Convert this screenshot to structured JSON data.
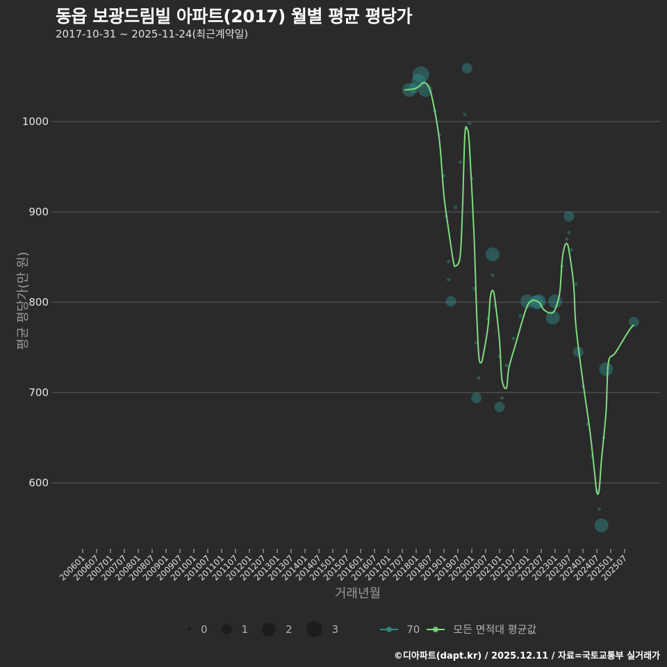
{
  "header": {
    "title": "동읍 보광드림빌 아파트(2017) 월별 평균 평당가",
    "subtitle": "2017-10-31 ~ 2025-11-24(최근계약일)"
  },
  "axes": {
    "y_label": "평균 평당가(만 원)",
    "x_label": "거래년월",
    "y_ticks": [
      "600",
      "700",
      "800",
      "900",
      "1000"
    ],
    "x_ticks": [
      "200601",
      "200607",
      "200701",
      "200707",
      "200801",
      "200807",
      "200901",
      "200907",
      "201001",
      "201007",
      "201101",
      "201107",
      "201201",
      "201207",
      "201301",
      "201307",
      "201401",
      "201407",
      "201501",
      "201507",
      "201601",
      "201607",
      "201701",
      "201707",
      "201801",
      "201807",
      "201901",
      "201907",
      "202001",
      "202007",
      "202101",
      "202107",
      "202201",
      "202207",
      "202301",
      "202307",
      "202401",
      "202407",
      "202501",
      "202507"
    ]
  },
  "legend": {
    "size_items": [
      {
        "label": "0",
        "size": 5
      },
      {
        "label": "1",
        "size": 15
      },
      {
        "label": "2",
        "size": 20
      },
      {
        "label": "3",
        "size": 23
      }
    ],
    "series": [
      {
        "label": "70",
        "color": "#2f8f8a"
      },
      {
        "label": "모든 면적대 평균값",
        "color": "#7fe07f"
      }
    ]
  },
  "footer": {
    "credit": "©디아파트(dapt.kr) / 2025.12.11 / 자료=국토교통부 실거래가"
  },
  "colors": {
    "background": "#2a2a2b",
    "grid": "#555555",
    "bubble": "#2f8f8a",
    "line": "#7fe07f"
  },
  "chart_data": {
    "type": "scatter+line",
    "title": "동읍 보광드림빌 아파트(2017) 월별 평균 평당가",
    "subtitle": "2017-10-31 ~ 2025-11-24(최근계약일)",
    "xlabel": "거래년월",
    "ylabel": "평균 평당가(만 원)",
    "ylim": [
      530,
      1080
    ],
    "yticks": [
      600,
      700,
      800,
      900,
      1000
    ],
    "grid": true,
    "legend_position": "bottom",
    "series": [
      {
        "name": "70",
        "kind": "bubble",
        "points": [
          {
            "x": "2017-10",
            "y": 1035,
            "size": 2
          },
          {
            "x": "2017-12",
            "y": 1037,
            "size": 1
          },
          {
            "x": "2018-02",
            "y": 1045,
            "size": 2
          },
          {
            "x": "2018-03",
            "y": 1052,
            "size": 3
          },
          {
            "x": "2018-05",
            "y": 1035,
            "size": 2
          },
          {
            "x": "2018-09",
            "y": 1012,
            "size": 0
          },
          {
            "x": "2018-11",
            "y": 985,
            "size": 0
          },
          {
            "x": "2019-01",
            "y": 940,
            "size": 0
          },
          {
            "x": "2019-02",
            "y": 895,
            "size": 0
          },
          {
            "x": "2019-03",
            "y": 845,
            "size": 0
          },
          {
            "x": "2019-03",
            "y": 825,
            "size": 0
          },
          {
            "x": "2019-04",
            "y": 801,
            "size": 1
          },
          {
            "x": "2019-06",
            "y": 905,
            "size": 0
          },
          {
            "x": "2019-08",
            "y": 955,
            "size": 0
          },
          {
            "x": "2019-10",
            "y": 1008,
            "size": 0
          },
          {
            "x": "2019-11",
            "y": 1059,
            "size": 1
          },
          {
            "x": "2019-12",
            "y": 998,
            "size": 0
          },
          {
            "x": "2020-01",
            "y": 937,
            "size": 0
          },
          {
            "x": "2020-02",
            "y": 815,
            "size": 0
          },
          {
            "x": "2020-03",
            "y": 694,
            "size": 1
          },
          {
            "x": "2020-04",
            "y": 716,
            "size": 0
          },
          {
            "x": "2020-03",
            "y": 755,
            "size": 0
          },
          {
            "x": "2020-08",
            "y": 782,
            "size": 0
          },
          {
            "x": "2020-10",
            "y": 853,
            "size": 2
          },
          {
            "x": "2020-10",
            "y": 830,
            "size": 0
          },
          {
            "x": "2020-11",
            "y": 796,
            "size": 0
          },
          {
            "x": "2021-01",
            "y": 684,
            "size": 1
          },
          {
            "x": "2021-01",
            "y": 740,
            "size": 0
          },
          {
            "x": "2021-02",
            "y": 694,
            "size": 0
          },
          {
            "x": "2021-04",
            "y": 730,
            "size": 0
          },
          {
            "x": "2021-07",
            "y": 760,
            "size": 0
          },
          {
            "x": "2021-10",
            "y": 785,
            "size": 0
          },
          {
            "x": "2022-01",
            "y": 801,
            "size": 2
          },
          {
            "x": "2022-05",
            "y": 800,
            "size": 2
          },
          {
            "x": "2022-06",
            "y": 801,
            "size": 2
          },
          {
            "x": "2022-12",
            "y": 783,
            "size": 2
          },
          {
            "x": "2023-01",
            "y": 801,
            "size": 2
          },
          {
            "x": "2023-04",
            "y": 840,
            "size": 0
          },
          {
            "x": "2023-06",
            "y": 870,
            "size": 0
          },
          {
            "x": "2023-07",
            "y": 895,
            "size": 1
          },
          {
            "x": "2023-07",
            "y": 877,
            "size": 0
          },
          {
            "x": "2023-08",
            "y": 858,
            "size": 0
          },
          {
            "x": "2023-10",
            "y": 820,
            "size": 0
          },
          {
            "x": "2023-11",
            "y": 745,
            "size": 1
          },
          {
            "x": "2024-01",
            "y": 707,
            "size": 0
          },
          {
            "x": "2024-03",
            "y": 665,
            "size": 0
          },
          {
            "x": "2024-05",
            "y": 630,
            "size": 0
          },
          {
            "x": "2024-07",
            "y": 591,
            "size": 0
          },
          {
            "x": "2024-08",
            "y": 571,
            "size": 0
          },
          {
            "x": "2024-09",
            "y": 553,
            "size": 2
          },
          {
            "x": "2024-10",
            "y": 650,
            "size": 0
          },
          {
            "x": "2024-11",
            "y": 726,
            "size": 2
          },
          {
            "x": "2025-11",
            "y": 778,
            "size": 1
          }
        ]
      },
      {
        "name": "모든 면적대 평균값",
        "kind": "smooth-line",
        "points": [
          {
            "x": "2017-08",
            "y": 1035
          },
          {
            "x": "2018-01",
            "y": 1037
          },
          {
            "x": "2018-04",
            "y": 1043
          },
          {
            "x": "2018-06",
            "y": 1040
          },
          {
            "x": "2018-08",
            "y": 1025
          },
          {
            "x": "2018-11",
            "y": 980
          },
          {
            "x": "2019-01",
            "y": 918
          },
          {
            "x": "2019-03",
            "y": 880
          },
          {
            "x": "2019-05",
            "y": 846
          },
          {
            "x": "2019-06",
            "y": 840
          },
          {
            "x": "2019-08",
            "y": 851
          },
          {
            "x": "2019-09",
            "y": 903
          },
          {
            "x": "2019-10",
            "y": 984
          },
          {
            "x": "2019-11",
            "y": 992
          },
          {
            "x": "2019-12",
            "y": 973
          },
          {
            "x": "2020-02",
            "y": 873
          },
          {
            "x": "2020-03",
            "y": 796
          },
          {
            "x": "2020-04",
            "y": 742
          },
          {
            "x": "2020-05",
            "y": 733
          },
          {
            "x": "2020-06",
            "y": 742
          },
          {
            "x": "2020-08",
            "y": 773
          },
          {
            "x": "2020-09",
            "y": 805
          },
          {
            "x": "2020-10",
            "y": 813
          },
          {
            "x": "2020-11",
            "y": 803
          },
          {
            "x": "2021-01",
            "y": 757
          },
          {
            "x": "2021-02",
            "y": 715
          },
          {
            "x": "2021-04",
            "y": 705
          },
          {
            "x": "2021-05",
            "y": 727
          },
          {
            "x": "2021-08",
            "y": 754
          },
          {
            "x": "2021-11",
            "y": 781
          },
          {
            "x": "2022-01",
            "y": 796
          },
          {
            "x": "2022-03",
            "y": 802
          },
          {
            "x": "2022-06",
            "y": 800
          },
          {
            "x": "2022-08",
            "y": 792
          },
          {
            "x": "2022-11",
            "y": 788
          },
          {
            "x": "2023-01",
            "y": 792
          },
          {
            "x": "2023-03",
            "y": 811
          },
          {
            "x": "2023-04",
            "y": 846
          },
          {
            "x": "2023-05",
            "y": 861
          },
          {
            "x": "2023-06",
            "y": 865
          },
          {
            "x": "2023-07",
            "y": 857
          },
          {
            "x": "2023-09",
            "y": 819
          },
          {
            "x": "2023-10",
            "y": 773
          },
          {
            "x": "2024-01",
            "y": 712
          },
          {
            "x": "2024-04",
            "y": 658
          },
          {
            "x": "2024-06",
            "y": 612
          },
          {
            "x": "2024-07",
            "y": 590
          },
          {
            "x": "2024-08",
            "y": 592
          },
          {
            "x": "2024-09",
            "y": 625
          },
          {
            "x": "2024-11",
            "y": 679
          },
          {
            "x": "2024-12",
            "y": 733
          },
          {
            "x": "2025-03",
            "y": 744
          },
          {
            "x": "2025-09",
            "y": 769
          },
          {
            "x": "2025-11",
            "y": 775
          }
        ]
      }
    ]
  }
}
